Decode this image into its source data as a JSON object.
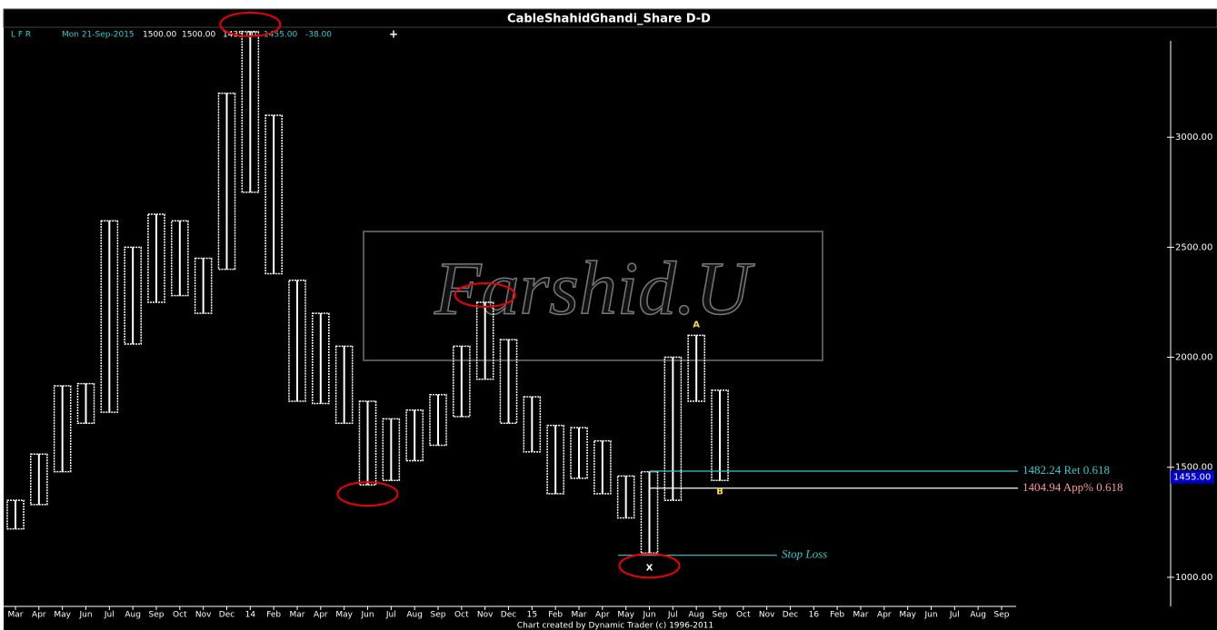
{
  "chart_data": {
    "type": "range-bar",
    "title": "CableShahidGhandi_Share D-D",
    "info": {
      "flags": "L F R",
      "date": "Mon 21-Sep-2015",
      "open": "1500.00",
      "high": "1500.00",
      "low": "1435.00",
      "close": "1455.00",
      "change": "-38.00"
    },
    "watermark": "Farshid.U",
    "footer": "Chart created by Dynamic Trader  (c) 1996-2011",
    "categories": [
      "Mar",
      "Apr",
      "May",
      "Jun",
      "Jul",
      "Aug",
      "Sep",
      "Oct",
      "Nov",
      "Dec",
      "14",
      "Feb",
      "Mar",
      "Apr",
      "May",
      "Jun",
      "Jul",
      "Aug",
      "Sep",
      "Oct",
      "Nov",
      "Dec",
      "15",
      "Feb",
      "Mar",
      "Apr",
      "May",
      "Jun",
      "Jul",
      "Aug",
      "Sep",
      "Oct",
      "Nov",
      "Dec",
      "16",
      "Feb",
      "Mar",
      "Apr",
      "May",
      "Jun",
      "Jul",
      "Aug",
      "Sep"
    ],
    "series": [
      {
        "name": "High",
        "color": "#ffffff",
        "values": [
          1350,
          1560,
          1870,
          1880,
          2620,
          2500,
          2650,
          2620,
          2450,
          3200,
          3480,
          3100,
          2350,
          2200,
          2050,
          1800,
          1720,
          1760,
          1830,
          2050,
          2250,
          2080,
          1820,
          1690,
          1680,
          1620,
          1460,
          1480,
          2000,
          2100,
          1850,
          null,
          null,
          null,
          null,
          null,
          null,
          null,
          null,
          null,
          null,
          null,
          null
        ]
      },
      {
        "name": "Low",
        "color": "#ffffff",
        "values": [
          1220,
          1330,
          1480,
          1700,
          1750,
          2060,
          2250,
          2280,
          2200,
          2400,
          2750,
          2380,
          1800,
          1790,
          1700,
          1420,
          1440,
          1530,
          1600,
          1730,
          1900,
          1700,
          1570,
          1380,
          1450,
          1380,
          1270,
          1110,
          1350,
          1800,
          1440,
          null,
          null,
          null,
          null,
          null,
          null,
          null,
          null,
          null,
          null,
          null,
          null
        ]
      }
    ],
    "ylim": [
      880,
      3500
    ],
    "yticks": [
      {
        "value": 1000,
        "label": "1000.00"
      },
      {
        "value": 1500,
        "label": "1500.00"
      },
      {
        "value": 2000,
        "label": "2000.00"
      },
      {
        "value": 2500,
        "label": "2500.00"
      },
      {
        "value": 3000,
        "label": "3000.00"
      }
    ],
    "levels": [
      {
        "value": 1482.24,
        "label": "1482.24 Ret 0.618",
        "color": "#33cccc"
      },
      {
        "value": 1404.94,
        "label": "1404.94 App% 0.618",
        "color": "#ffffff",
        "label_color": "#ff9999"
      },
      {
        "value": 1100,
        "label": "Stop Loss",
        "color": "#33cccc"
      }
    ],
    "last_price": {
      "value": 1455,
      "label": "1455.00"
    },
    "annotations": [
      "A",
      "B",
      "X"
    ]
  }
}
